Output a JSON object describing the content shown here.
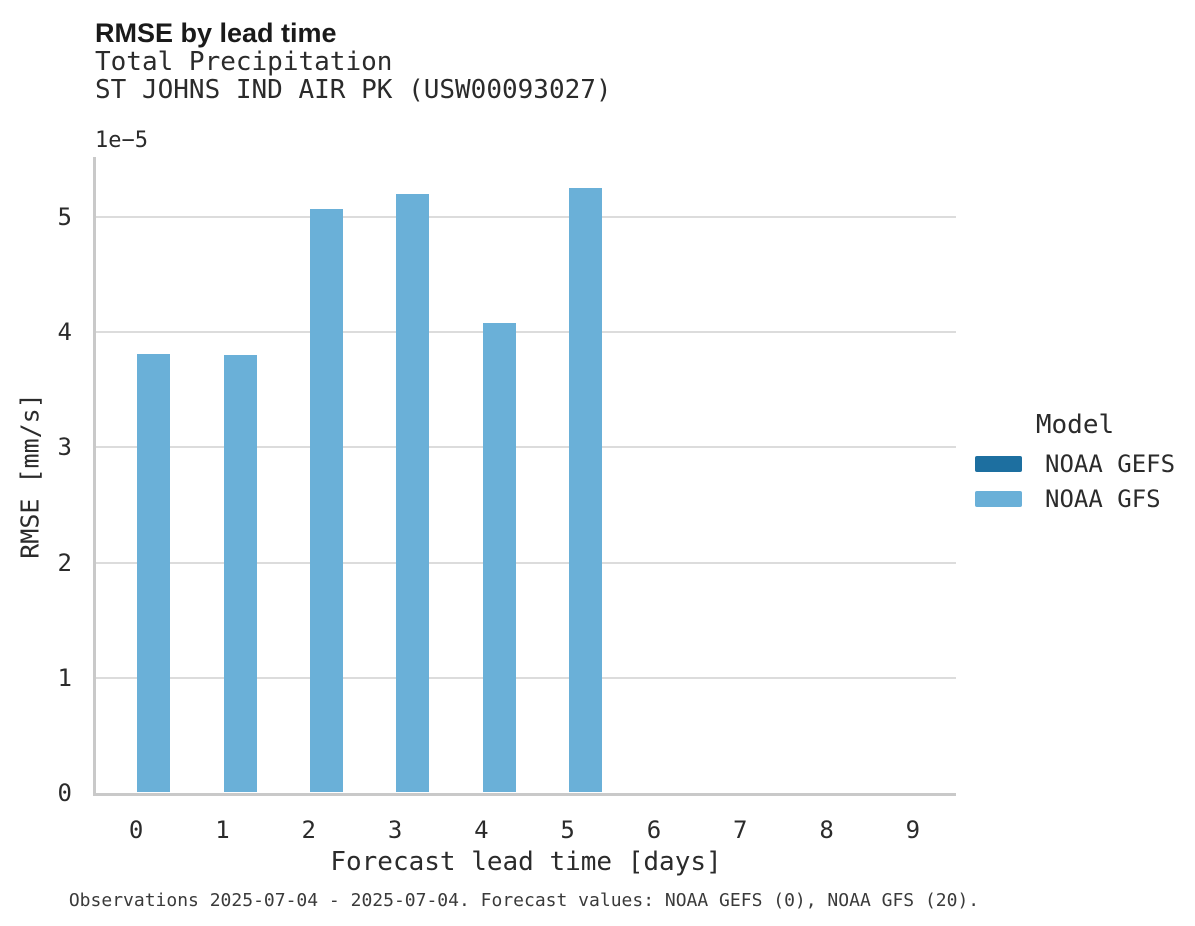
{
  "header": {
    "title": "RMSE by lead time",
    "subtitle_variable": "Total Precipitation",
    "subtitle_station": "ST JOHNS IND AIR PK (USW00093027)"
  },
  "axes": {
    "xlabel": "Forecast lead time [days]",
    "ylabel": "RMSE [mm/s]",
    "y_offset_label": "1e−5",
    "ytick_labels": [
      "0",
      "1",
      "2",
      "3",
      "4",
      "5"
    ],
    "xtick_labels": [
      "0",
      "1",
      "2",
      "3",
      "4",
      "5",
      "6",
      "7",
      "8",
      "9"
    ]
  },
  "chart_data": {
    "type": "bar",
    "title": "RMSE by lead time",
    "subtitle": "Total Precipitation — ST JOHNS IND AIR PK (USW00093027)",
    "xlabel": "Forecast lead time [days]",
    "ylabel": "RMSE [mm/s]",
    "y_offset_multiplier": 1e-05,
    "categories": [
      0,
      1,
      2,
      3,
      4,
      5,
      6,
      7,
      8,
      9
    ],
    "series": [
      {
        "name": "NOAA GEFS",
        "color": "#1d6fa0",
        "values": [
          null,
          null,
          null,
          null,
          null,
          null,
          null,
          null,
          null,
          null
        ]
      },
      {
        "name": "NOAA GFS",
        "color": "#6ab0d8",
        "values": [
          3.81e-05,
          3.8e-05,
          5.07e-05,
          5.2e-05,
          4.08e-05,
          5.25e-05,
          null,
          null,
          null,
          null
        ]
      }
    ],
    "ylim": [
      0,
      5.52e-05
    ],
    "yticks": [
      0,
      1e-05,
      2e-05,
      3e-05,
      4e-05,
      5e-05
    ],
    "grid": "horizontal-only",
    "legend_position": "center-right"
  },
  "legend": {
    "title": "Model",
    "entries": [
      {
        "label": "NOAA GEFS",
        "color": "#1d6fa0"
      },
      {
        "label": "NOAA GFS",
        "color": "#6ab0d8"
      }
    ]
  },
  "footer": {
    "text": "Observations 2025-07-04 - 2025-07-04. Forecast values: NOAA GEFS (0), NOAA GFS (20)."
  },
  "colors": {
    "noaa_gefs": "#1d6fa0",
    "noaa_gfs": "#6ab0d8",
    "gridline": "#dcdcdc",
    "spine": "#c9c9c9",
    "text": "#2b2b2b",
    "title_text": "#1a1a1a"
  }
}
